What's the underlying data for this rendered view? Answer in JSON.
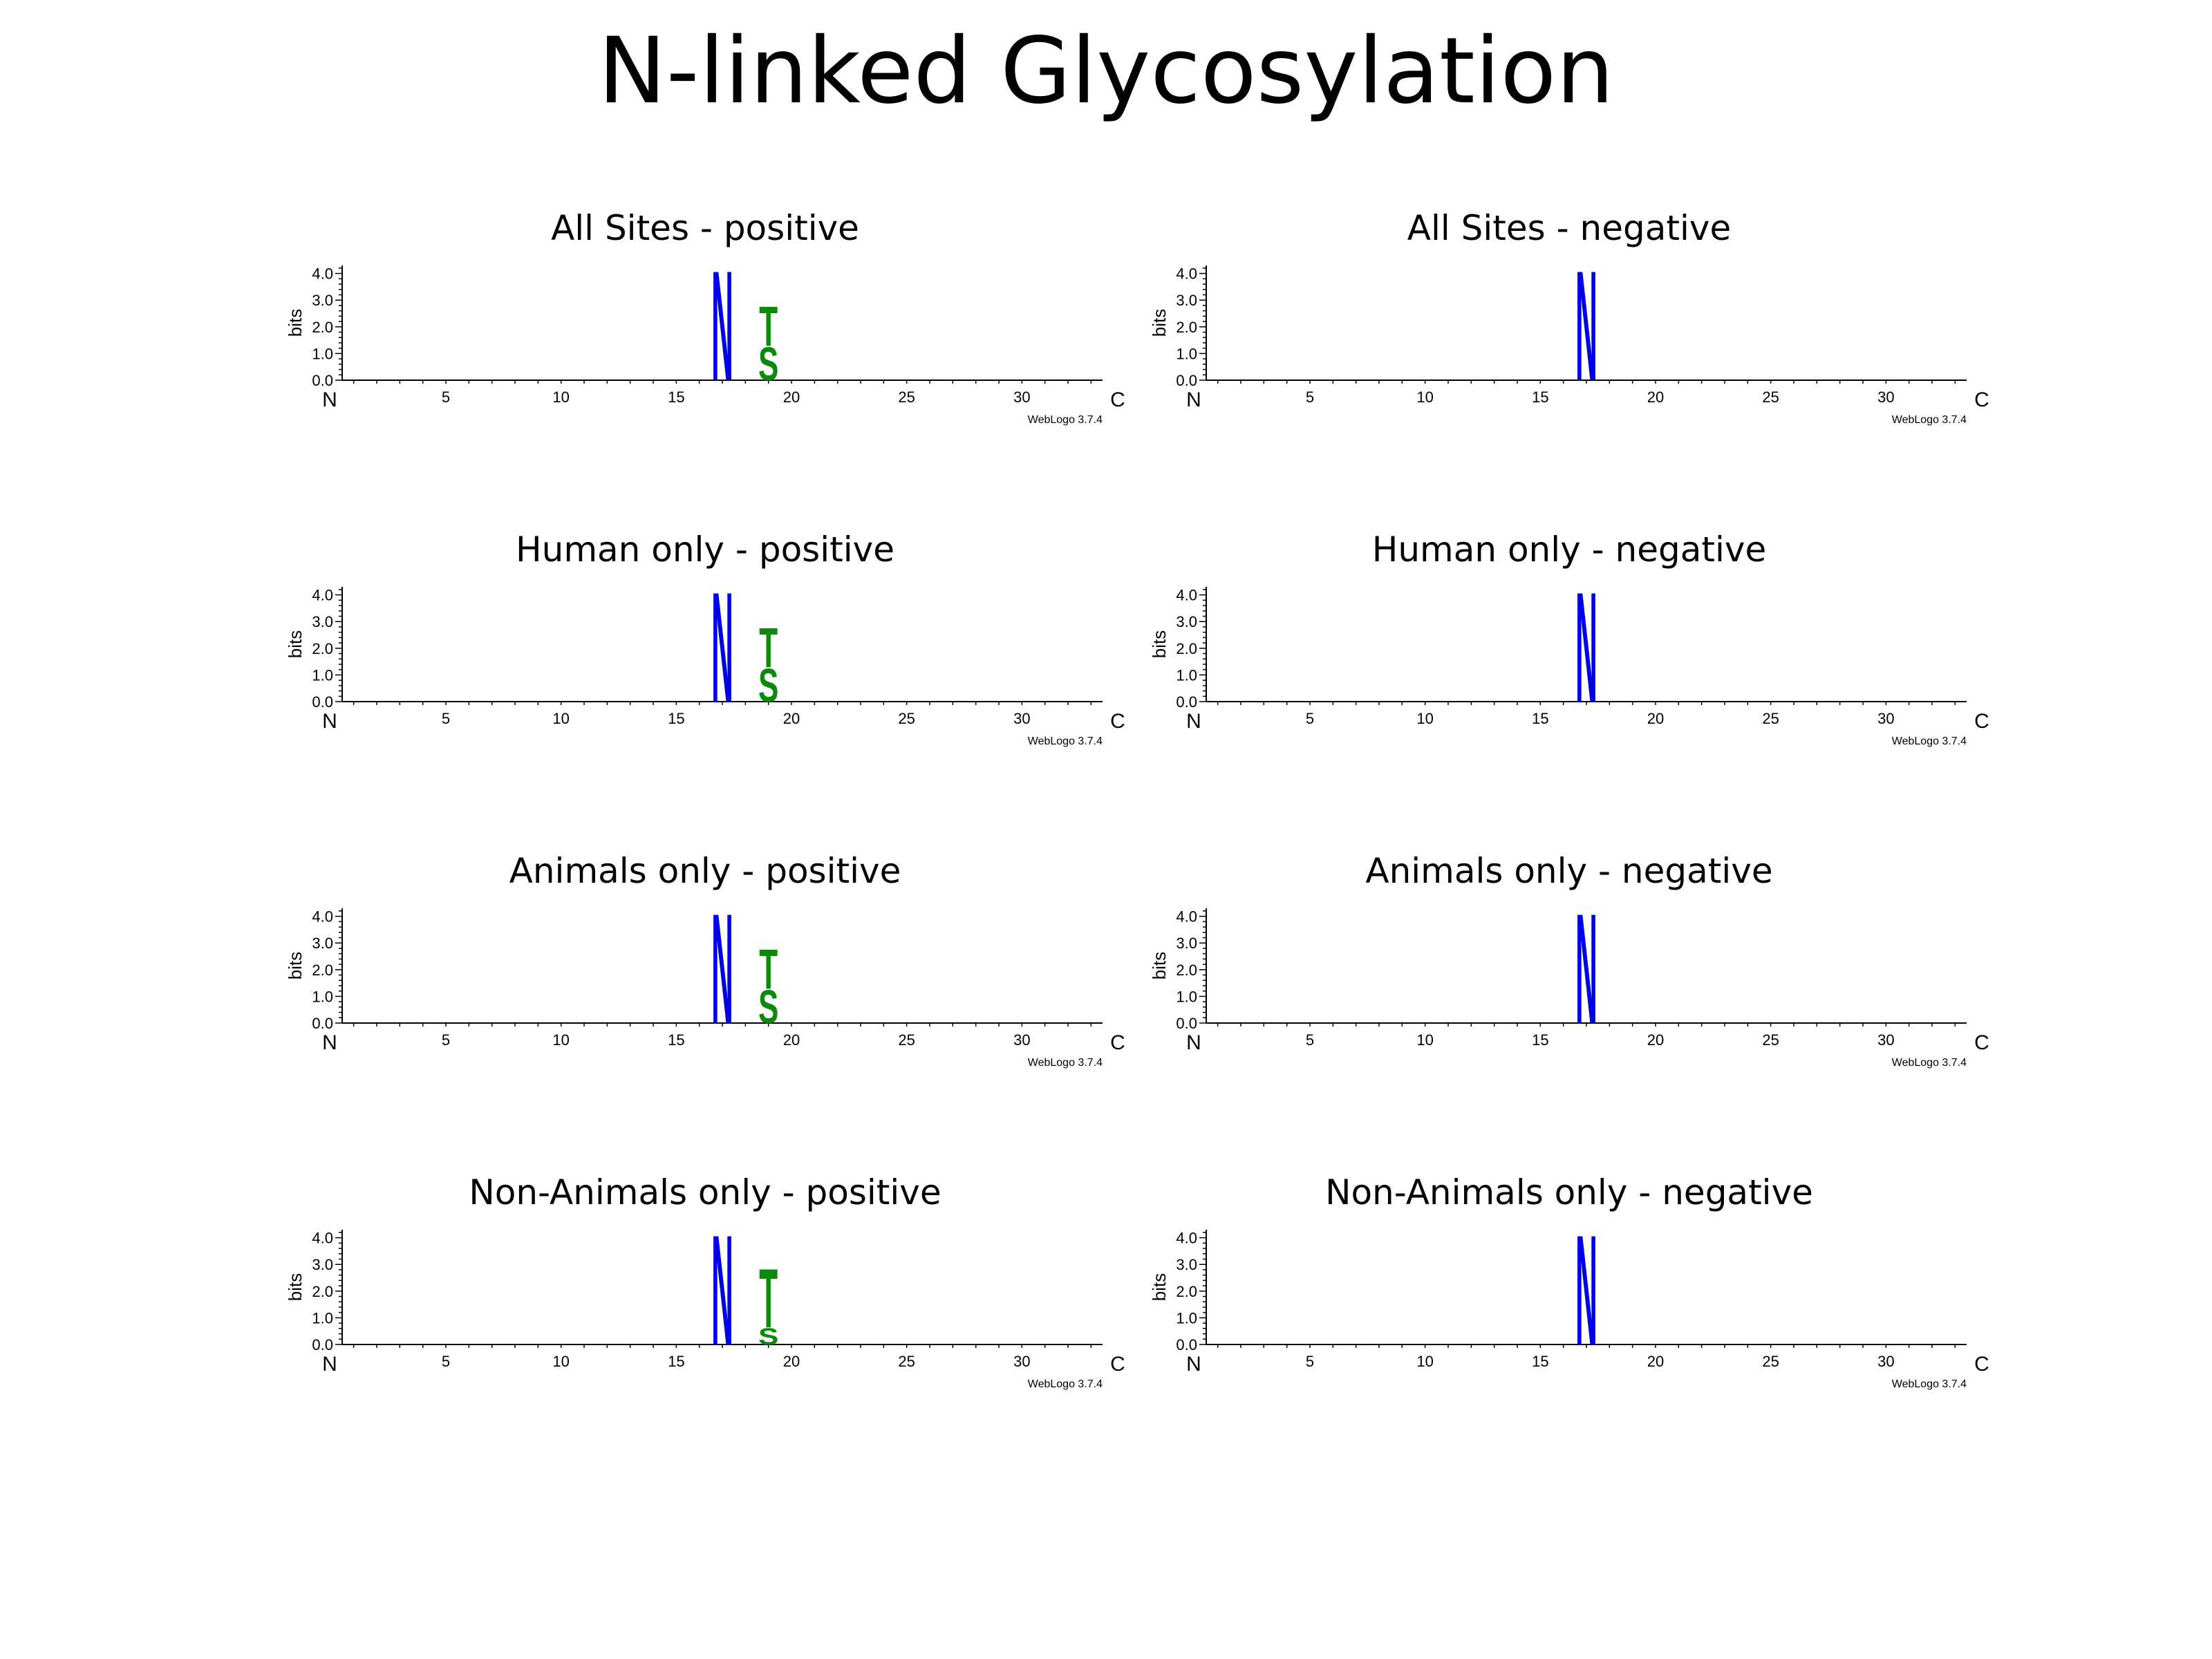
{
  "title": "N-linked Glycosylation",
  "chart_data": [
    {
      "type": "sequence-logo",
      "title": "All Sites - positive",
      "ylabel": "bits",
      "ylim": [
        0,
        4.3
      ],
      "yticks": [
        "0.0",
        "1.0",
        "2.0",
        "3.0",
        "4.0"
      ],
      "xticks": [
        "5",
        "10",
        "15",
        "20",
        "25",
        "30"
      ],
      "positions": 33,
      "start_label": "N",
      "end_label": "C",
      "footer": "WebLogo 3.7.4",
      "stacks": [
        {
          "position": 17,
          "letters": [
            {
              "char": "N",
              "bits": 4.3,
              "color": "#0000e6"
            }
          ]
        },
        {
          "position": 19,
          "letters": [
            {
              "char": "S",
              "bits": 1.3,
              "color": "#0a8a0a"
            },
            {
              "char": "T",
              "bits": 1.55,
              "color": "#0a8a0a"
            }
          ]
        }
      ]
    },
    {
      "type": "sequence-logo",
      "title": "All Sites - negative",
      "ylabel": "bits",
      "ylim": [
        0,
        4.3
      ],
      "yticks": [
        "0.0",
        "1.0",
        "2.0",
        "3.0",
        "4.0"
      ],
      "xticks": [
        "5",
        "10",
        "15",
        "20",
        "25",
        "30"
      ],
      "positions": 33,
      "start_label": "N",
      "end_label": "C",
      "footer": "WebLogo 3.7.4",
      "stacks": [
        {
          "position": 17,
          "letters": [
            {
              "char": "N",
              "bits": 4.3,
              "color": "#0000e6"
            }
          ]
        }
      ]
    },
    {
      "type": "sequence-logo",
      "title": "Human only - positive",
      "ylabel": "bits",
      "ylim": [
        0,
        4.3
      ],
      "yticks": [
        "0.0",
        "1.0",
        "2.0",
        "3.0",
        "4.0"
      ],
      "xticks": [
        "5",
        "10",
        "15",
        "20",
        "25",
        "30"
      ],
      "positions": 33,
      "start_label": "N",
      "end_label": "C",
      "footer": "WebLogo 3.7.4",
      "stacks": [
        {
          "position": 17,
          "letters": [
            {
              "char": "N",
              "bits": 4.3,
              "color": "#0000e6"
            }
          ]
        },
        {
          "position": 19,
          "letters": [
            {
              "char": "S",
              "bits": 1.3,
              "color": "#0a8a0a"
            },
            {
              "char": "T",
              "bits": 1.55,
              "color": "#0a8a0a"
            }
          ]
        }
      ]
    },
    {
      "type": "sequence-logo",
      "title": "Human only - negative",
      "ylabel": "bits",
      "ylim": [
        0,
        4.3
      ],
      "yticks": [
        "0.0",
        "1.0",
        "2.0",
        "3.0",
        "4.0"
      ],
      "xticks": [
        "5",
        "10",
        "15",
        "20",
        "25",
        "30"
      ],
      "positions": 33,
      "start_label": "N",
      "end_label": "C",
      "footer": "WebLogo 3.7.4",
      "stacks": [
        {
          "position": 17,
          "letters": [
            {
              "char": "N",
              "bits": 4.3,
              "color": "#0000e6"
            }
          ]
        }
      ]
    },
    {
      "type": "sequence-logo",
      "title": "Animals only - positive",
      "ylabel": "bits",
      "ylim": [
        0,
        4.3
      ],
      "yticks": [
        "0.0",
        "1.0",
        "2.0",
        "3.0",
        "4.0"
      ],
      "xticks": [
        "5",
        "10",
        "15",
        "20",
        "25",
        "30"
      ],
      "positions": 33,
      "start_label": "N",
      "end_label": "C",
      "footer": "WebLogo 3.7.4",
      "stacks": [
        {
          "position": 17,
          "letters": [
            {
              "char": "N",
              "bits": 4.3,
              "color": "#0000e6"
            }
          ]
        },
        {
          "position": 19,
          "letters": [
            {
              "char": "S",
              "bits": 1.3,
              "color": "#0a8a0a"
            },
            {
              "char": "T",
              "bits": 1.55,
              "color": "#0a8a0a"
            }
          ]
        }
      ]
    },
    {
      "type": "sequence-logo",
      "title": "Animals only - negative",
      "ylabel": "bits",
      "ylim": [
        0,
        4.3
      ],
      "yticks": [
        "0.0",
        "1.0",
        "2.0",
        "3.0",
        "4.0"
      ],
      "xticks": [
        "5",
        "10",
        "15",
        "20",
        "25",
        "30"
      ],
      "positions": 33,
      "start_label": "N",
      "end_label": "C",
      "footer": "WebLogo 3.7.4",
      "stacks": [
        {
          "position": 17,
          "letters": [
            {
              "char": "N",
              "bits": 4.3,
              "color": "#0000e6"
            }
          ]
        }
      ]
    },
    {
      "type": "sequence-logo",
      "title": "Non-Animals only - positive",
      "ylabel": "bits",
      "ylim": [
        0,
        4.3
      ],
      "yticks": [
        "0.0",
        "1.0",
        "2.0",
        "3.0",
        "4.0"
      ],
      "xticks": [
        "5",
        "10",
        "15",
        "20",
        "25",
        "30"
      ],
      "positions": 33,
      "start_label": "N",
      "end_label": "C",
      "footer": "WebLogo 3.7.4",
      "stacks": [
        {
          "position": 17,
          "letters": [
            {
              "char": "N",
              "bits": 4.3,
              "color": "#0000e6"
            }
          ]
        },
        {
          "position": 19,
          "letters": [
            {
              "char": "S",
              "bits": 0.65,
              "color": "#0a8a0a"
            },
            {
              "char": "T",
              "bits": 2.3,
              "color": "#0a8a0a"
            }
          ]
        }
      ]
    },
    {
      "type": "sequence-logo",
      "title": "Non-Animals only - negative",
      "ylabel": "bits",
      "ylim": [
        0,
        4.3
      ],
      "yticks": [
        "0.0",
        "1.0",
        "2.0",
        "3.0",
        "4.0"
      ],
      "xticks": [
        "5",
        "10",
        "15",
        "20",
        "25",
        "30"
      ],
      "positions": 33,
      "start_label": "N",
      "end_label": "C",
      "footer": "WebLogo 3.7.4",
      "stacks": [
        {
          "position": 17,
          "letters": [
            {
              "char": "N",
              "bits": 4.3,
              "color": "#0000e6"
            }
          ]
        }
      ]
    }
  ]
}
